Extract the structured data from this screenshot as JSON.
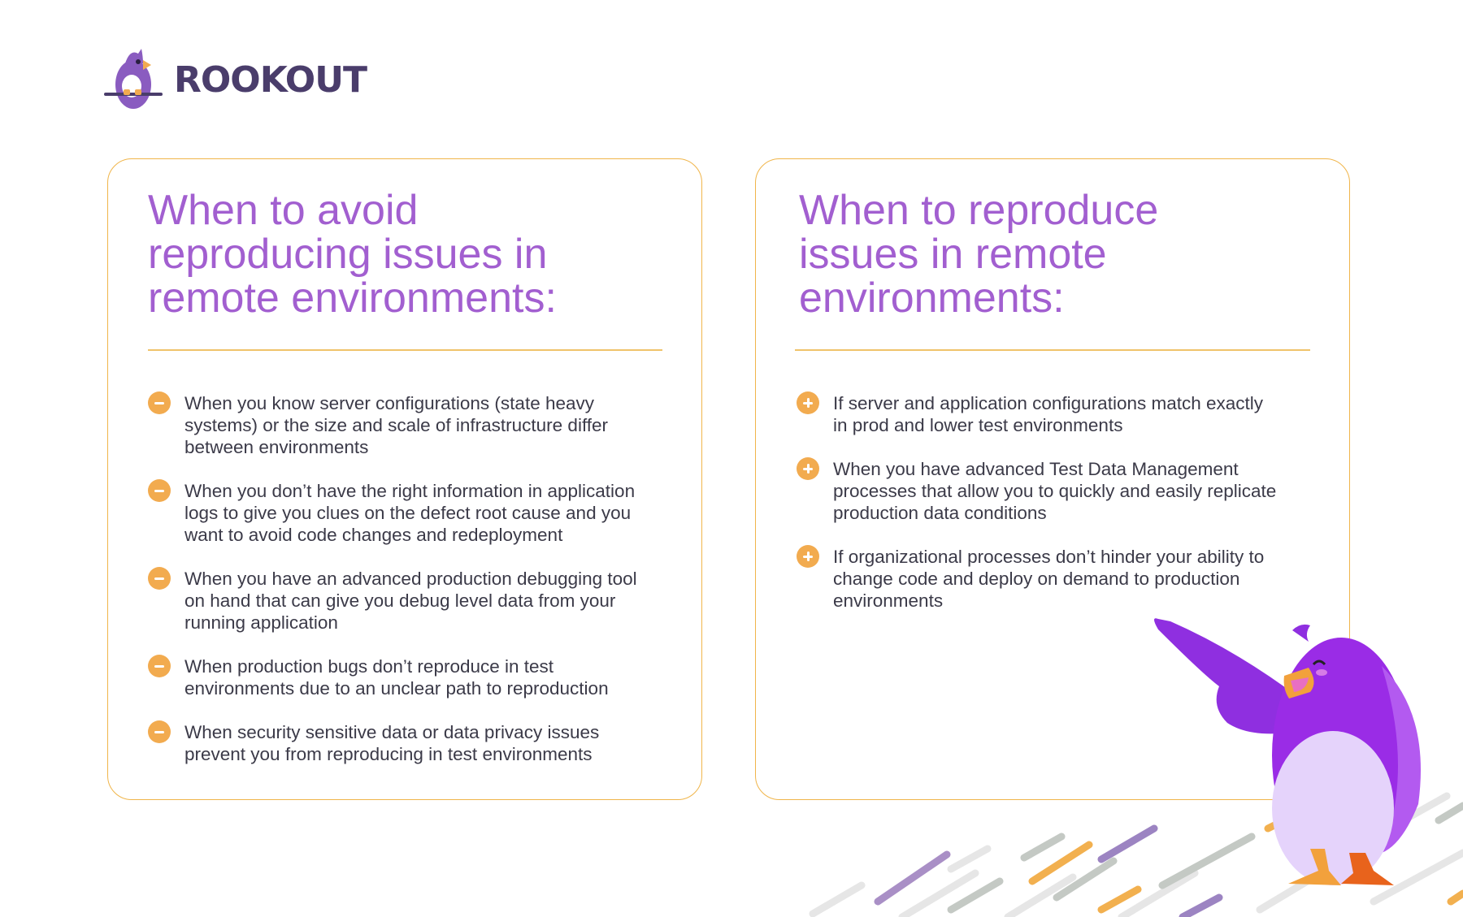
{
  "brand": {
    "name": "ROOKOUT"
  },
  "colors": {
    "accent_purple": "#a25fd0",
    "accent_orange": "#f2ab4f",
    "text": "#3b3a48",
    "logo": "#4a3d6b"
  },
  "left_card": {
    "title_lines": [
      "When to avoid",
      "reproducing issues in",
      "remote environments:"
    ],
    "icon": "minus-circle-icon",
    "items": [
      {
        "lines": [
          "When you know server configurations (state heavy",
          "systems) or the size and scale of infrastructure differ",
          "between environments"
        ]
      },
      {
        "lines": [
          "When you don’t have the right information in application",
          "logs to give you clues on the defect root cause and you",
          "want to avoid code changes and redeployment"
        ]
      },
      {
        "lines": [
          "When you have an advanced production debugging tool",
          "on hand that can give you debug level data from your",
          "running application"
        ]
      },
      {
        "lines": [
          "When production bugs don’t reproduce in test",
          "environments due to an unclear path to reproduction"
        ]
      },
      {
        "lines": [
          "When security sensitive data or data privacy issues",
          "prevent you from reproducing in test environments"
        ]
      }
    ]
  },
  "right_card": {
    "title_lines": [
      "When to reproduce",
      "issues in remote",
      "environments:"
    ],
    "icon": "plus-circle-icon",
    "items": [
      {
        "lines": [
          "If server and application configurations match exactly",
          "in prod and lower test environments"
        ]
      },
      {
        "lines": [
          "When you have advanced Test Data Management",
          "processes that allow you to quickly and easily replicate",
          "production data conditions"
        ]
      },
      {
        "lines": [
          "If organizational processes don’t hinder your ability to",
          "change code and deploy on demand to production",
          "environments"
        ]
      }
    ]
  }
}
